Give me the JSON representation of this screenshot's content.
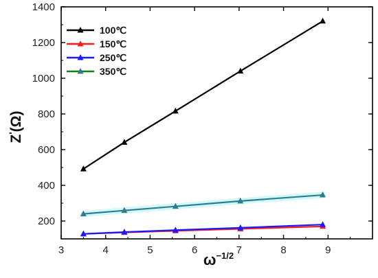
{
  "chart_data": {
    "type": "line",
    "xlabel": "ω",
    "xlabel_exponent": "−1/2",
    "ylabel": "Z",
    "ylabel_prime": "'",
    "ylabel_unit": "(Ω)",
    "xlim": [
      3,
      10
    ],
    "ylim": [
      100,
      1400
    ],
    "xticks": [
      3,
      4,
      5,
      6,
      7,
      8,
      9
    ],
    "yticks": [
      200,
      400,
      600,
      800,
      1000,
      1200,
      1400
    ],
    "legend_position": "top-left",
    "x": [
      3.5,
      4.42,
      5.57,
      7.03,
      8.88
    ],
    "series": [
      {
        "name": "100℃",
        "color": "#000000",
        "values": [
          492,
          641,
          816,
          1040,
          1320
        ]
      },
      {
        "name": "150℃",
        "color": "#ff1a1a",
        "values": [
          128,
          136,
          145,
          156,
          170
        ]
      },
      {
        "name": "250℃",
        "color": "#1a1aff",
        "values": [
          128,
          138,
          149,
          162,
          180
        ]
      },
      {
        "name": "350℃",
        "color": "#2c7d8f",
        "legend_line_color": "#128012",
        "values": [
          240,
          259,
          282,
          312,
          346
        ]
      }
    ]
  }
}
